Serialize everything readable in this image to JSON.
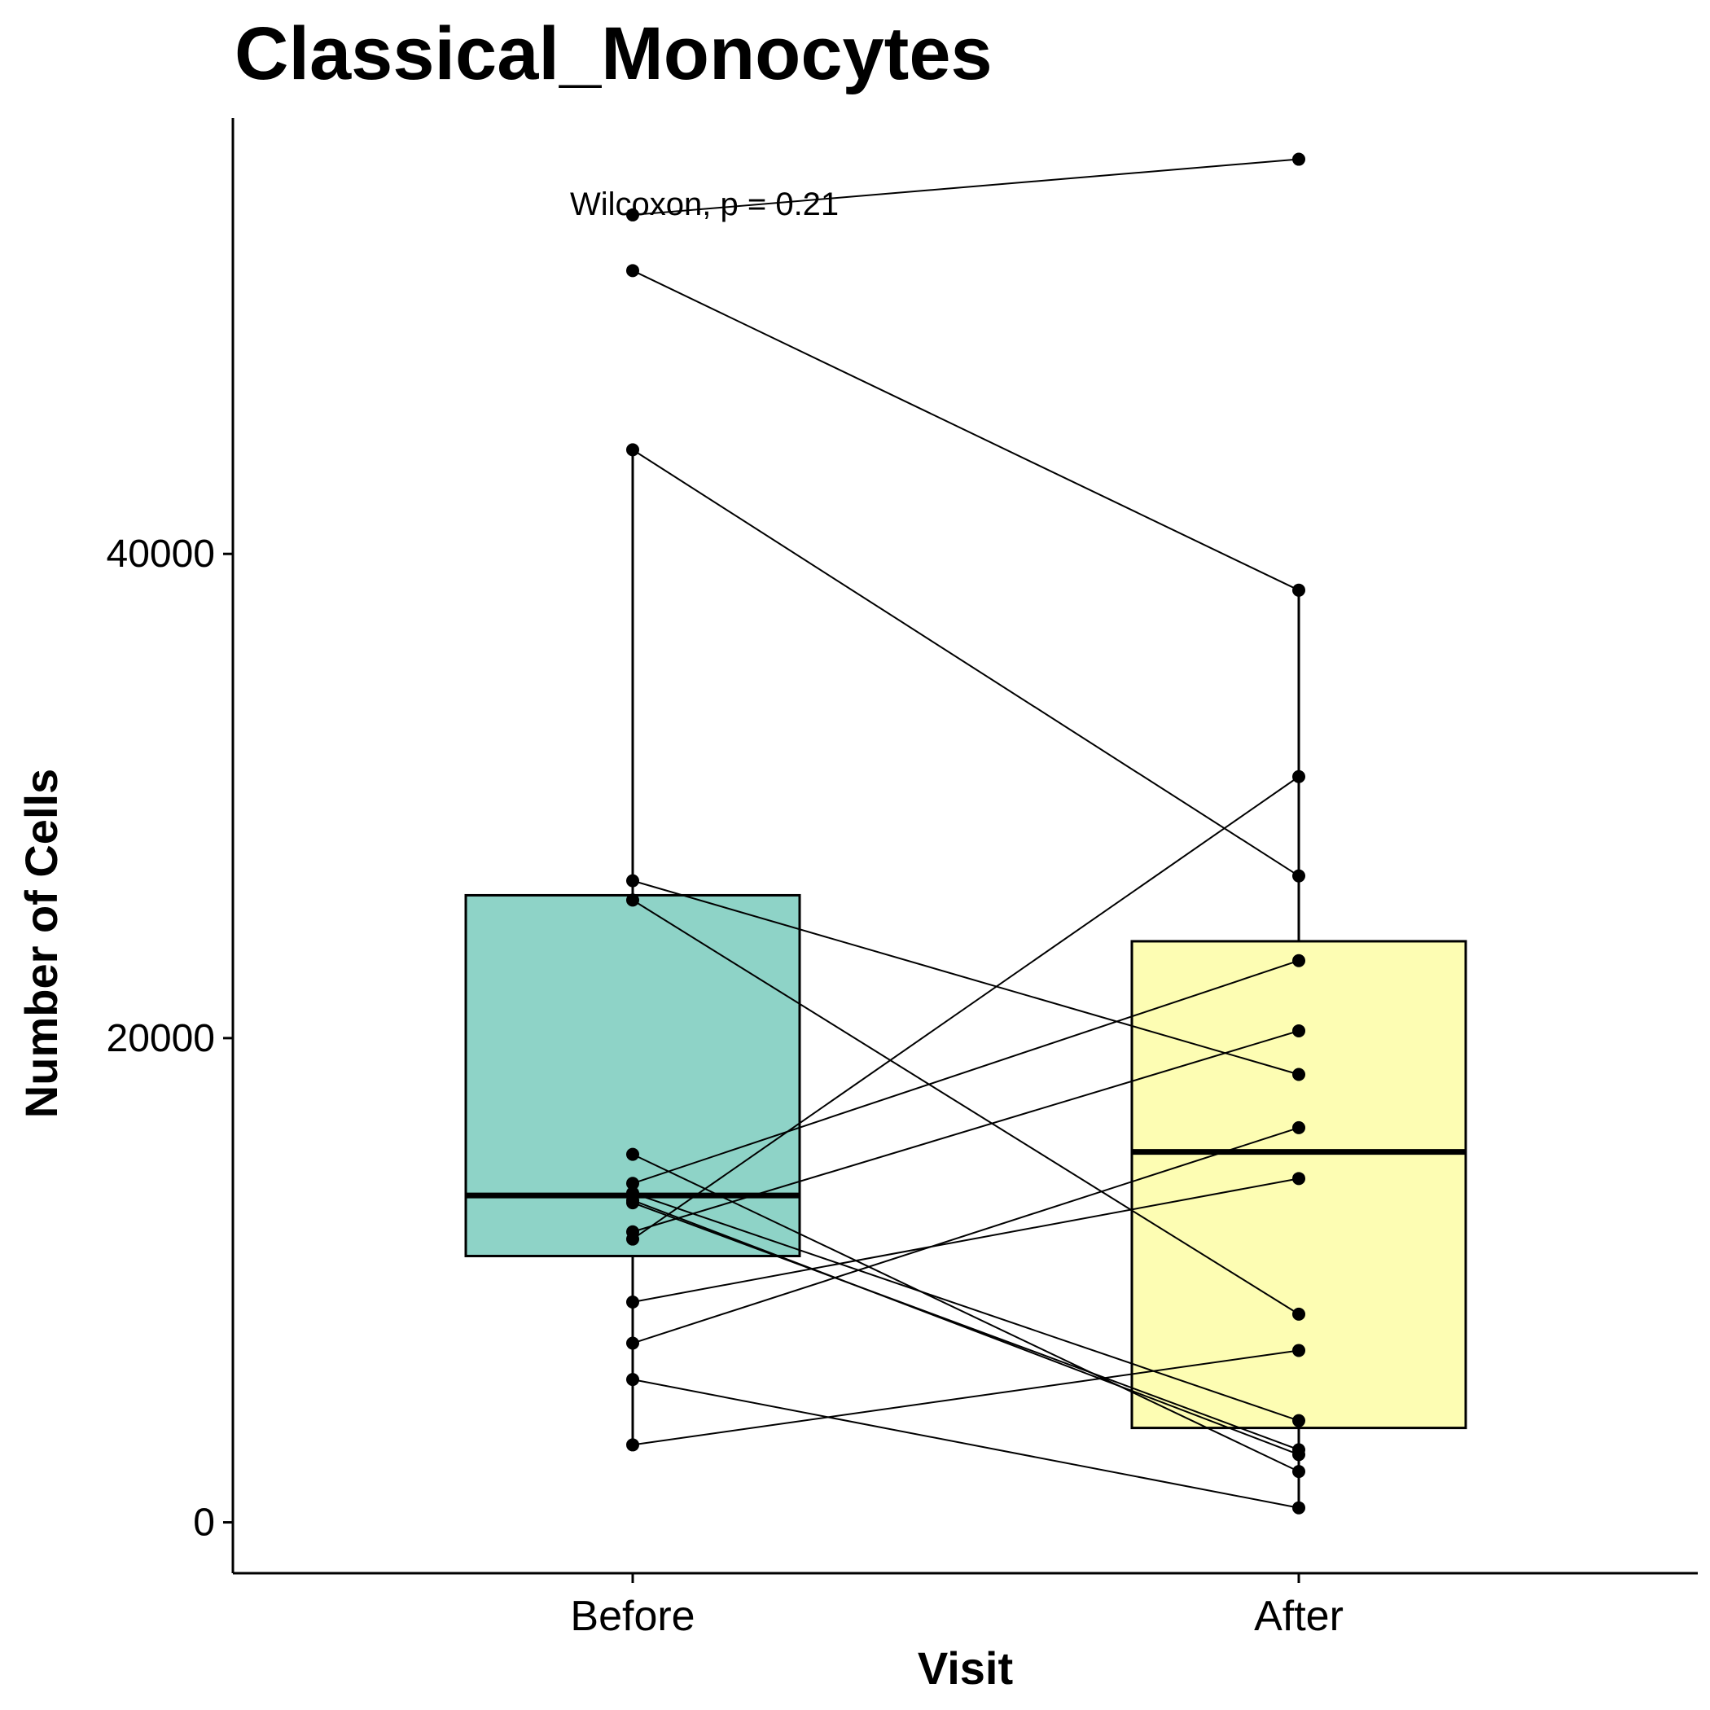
{
  "chart_data": {
    "type": "box",
    "title": "Classical_Monocytes",
    "xlabel": "Visit",
    "ylabel": "Number of Cells",
    "categories": [
      "Before",
      "After"
    ],
    "ylim": [
      -2100,
      58000
    ],
    "yticks": [
      0,
      20000,
      40000
    ],
    "annotation": "Wilcoxon, p = 0.21",
    "colors": {
      "Before": "#8ed3c7",
      "After": "#fdfdb3"
    },
    "boxes": [
      {
        "category": "Before",
        "lower_whisker": 3200,
        "q1": 11000,
        "median": 13500,
        "q3": 25900,
        "upper_whisker": 44300
      },
      {
        "category": "After",
        "lower_whisker": 600,
        "q1": 3900,
        "median": 15300,
        "q3": 24000,
        "upper_whisker": 38500
      }
    ],
    "pairs": [
      {
        "before": 54000,
        "after": 56300
      },
      {
        "before": 51700,
        "after": 38500
      },
      {
        "before": 44300,
        "after": 26700
      },
      {
        "before": 26500,
        "after": 18500
      },
      {
        "before": 25700,
        "after": 8600
      },
      {
        "before": 15200,
        "after": 2100
      },
      {
        "before": 14000,
        "after": 23200
      },
      {
        "before": 13600,
        "after": 4200
      },
      {
        "before": 13300,
        "after": 2800
      },
      {
        "before": 13200,
        "after": 3000
      },
      {
        "before": 12000,
        "after": 20300
      },
      {
        "before": 11700,
        "after": 30800
      },
      {
        "before": 9100,
        "after": 14200
      },
      {
        "before": 7400,
        "after": 16300
      },
      {
        "before": 5900,
        "after": 600
      },
      {
        "before": 3200,
        "after": 7100
      }
    ]
  }
}
